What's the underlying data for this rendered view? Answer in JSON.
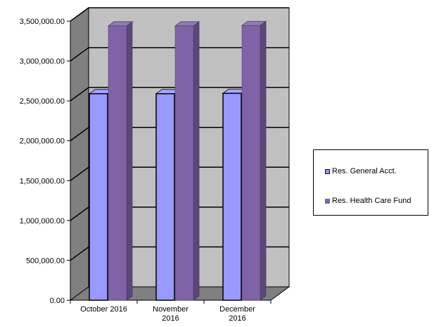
{
  "chart_data": {
    "type": "bar",
    "style": "3d-clustered-column",
    "categories": [
      [
        "October 2016"
      ],
      [
        "November",
        "2016"
      ],
      [
        "December",
        "2016"
      ]
    ],
    "series": [
      {
        "name": "Res. General Acct.",
        "values": [
          2590000,
          2590000,
          2595000
        ],
        "color": "#9999ff"
      },
      {
        "name": "Res. Health Care Fund",
        "values": [
          3440000,
          3440000,
          3445000
        ],
        "color": "#7f63a6"
      }
    ],
    "yticks": [
      "0.00",
      "500,000.00",
      "1,000,000.00",
      "1,500,000.00",
      "2,000,000.00",
      "2,500,000.00",
      "3,000,000.00",
      "3,500,000.00"
    ],
    "ylim": [
      0,
      3500000
    ],
    "grid": true,
    "legend": "right",
    "wall_color": "#c0c0c0",
    "side_wall_color": "#808080",
    "floor_color": "#808080"
  }
}
